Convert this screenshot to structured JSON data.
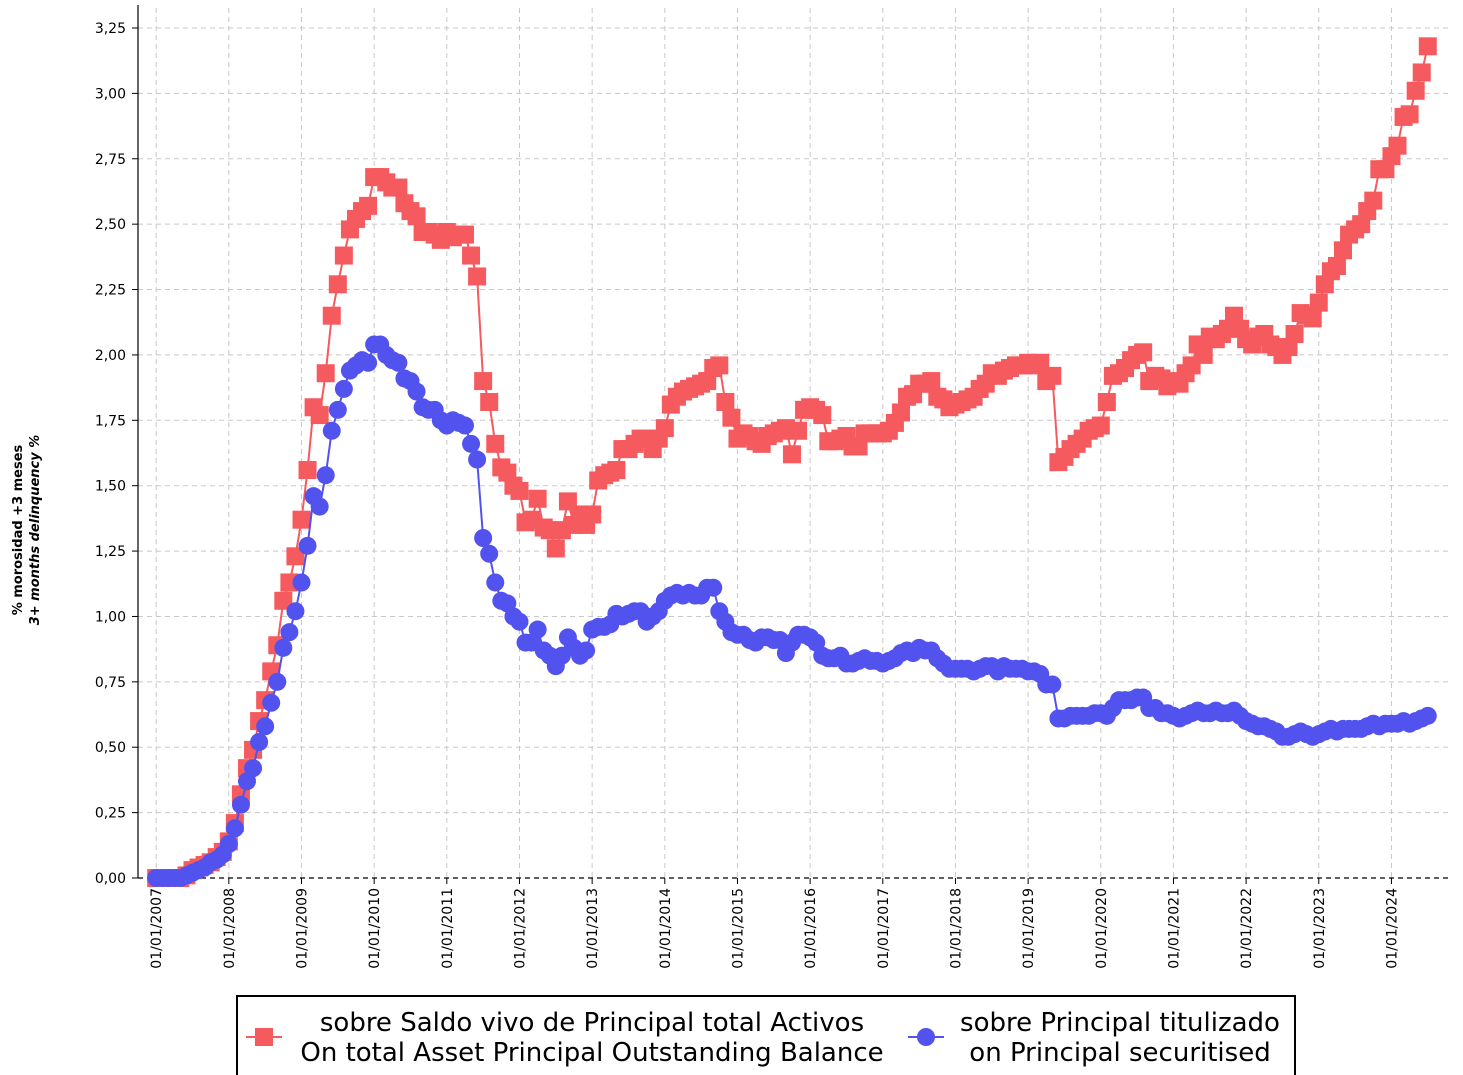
{
  "chart_data": {
    "type": "line",
    "ylabel": "% morosidad +3 meses",
    "ylabel_en": "3+ months delinquency %",
    "x": [
      "2007-01-01",
      "2007-02-01",
      "2007-03-01",
      "2007-04-01",
      "2007-05-01",
      "2007-06-01",
      "2007-07-01",
      "2007-08-01",
      "2007-09-01",
      "2007-10-01",
      "2007-11-01",
      "2007-12-01",
      "2008-01-01",
      "2008-02-01",
      "2008-03-01",
      "2008-04-01",
      "2008-05-01",
      "2008-06-01",
      "2008-07-01",
      "2008-08-01",
      "2008-09-01",
      "2008-10-01",
      "2008-11-01",
      "2008-12-01",
      "2009-01-01",
      "2009-02-01",
      "2009-03-01",
      "2009-04-01",
      "2009-05-01",
      "2009-06-01",
      "2009-07-01",
      "2009-08-01",
      "2009-09-01",
      "2009-10-01",
      "2009-11-01",
      "2009-12-01",
      "2010-01-01",
      "2010-02-01",
      "2010-03-01",
      "2010-04-01",
      "2010-05-01",
      "2010-06-01",
      "2010-07-01",
      "2010-08-01",
      "2010-09-01",
      "2010-10-01",
      "2010-11-01",
      "2010-12-01",
      "2011-01-01",
      "2011-02-01",
      "2011-03-01",
      "2011-04-01",
      "2011-05-01",
      "2011-06-01",
      "2011-07-01",
      "2011-08-01",
      "2011-09-01",
      "2011-10-01",
      "2011-11-01",
      "2011-12-01",
      "2012-01-01",
      "2012-02-01",
      "2012-03-01",
      "2012-04-01",
      "2012-05-01",
      "2012-06-01",
      "2012-07-01",
      "2012-08-01",
      "2012-09-01",
      "2012-10-01",
      "2012-11-01",
      "2012-12-01",
      "2013-01-01",
      "2013-02-01",
      "2013-03-01",
      "2013-04-01",
      "2013-05-01",
      "2013-06-01",
      "2013-07-01",
      "2013-08-01",
      "2013-09-01",
      "2013-10-01",
      "2013-11-01",
      "2013-12-01",
      "2014-01-01",
      "2014-02-01",
      "2014-03-01",
      "2014-04-01",
      "2014-05-01",
      "2014-06-01",
      "2014-07-01",
      "2014-08-01",
      "2014-09-01",
      "2014-10-01",
      "2014-11-01",
      "2014-12-01",
      "2015-01-01",
      "2015-02-01",
      "2015-03-01",
      "2015-04-01",
      "2015-05-01",
      "2015-06-01",
      "2015-07-01",
      "2015-08-01",
      "2015-09-01",
      "2015-10-01",
      "2015-11-01",
      "2015-12-01",
      "2016-01-01",
      "2016-02-01",
      "2016-03-01",
      "2016-04-01",
      "2016-05-01",
      "2016-06-01",
      "2016-07-01",
      "2016-08-01",
      "2016-09-01",
      "2016-10-01",
      "2016-11-01",
      "2016-12-01",
      "2017-01-01",
      "2017-02-01",
      "2017-03-01",
      "2017-04-01",
      "2017-05-01",
      "2017-06-01",
      "2017-07-01",
      "2017-08-01",
      "2017-09-01",
      "2017-10-01",
      "2017-11-01",
      "2017-12-01",
      "2018-01-01",
      "2018-02-01",
      "2018-03-01",
      "2018-04-01",
      "2018-05-01",
      "2018-06-01",
      "2018-07-01",
      "2018-08-01",
      "2018-09-01",
      "2018-10-01",
      "2018-11-01",
      "2018-12-01",
      "2019-01-01",
      "2019-02-01",
      "2019-03-01",
      "2019-04-01",
      "2019-05-01",
      "2019-06-01",
      "2019-07-01",
      "2019-08-01",
      "2019-09-01",
      "2019-10-01",
      "2019-11-01",
      "2019-12-01",
      "2020-01-01",
      "2020-02-01",
      "2020-03-01",
      "2020-04-01",
      "2020-05-01",
      "2020-06-01",
      "2020-07-01",
      "2020-08-01",
      "2020-09-01",
      "2020-10-01",
      "2020-11-01",
      "2020-12-01",
      "2021-01-01",
      "2021-02-01",
      "2021-03-01",
      "2021-04-01",
      "2021-05-01",
      "2021-06-01",
      "2021-07-01",
      "2021-08-01",
      "2021-09-01",
      "2021-10-01",
      "2021-11-01",
      "2021-12-01",
      "2022-01-01",
      "2022-02-01",
      "2022-03-01",
      "2022-04-01",
      "2022-05-01",
      "2022-06-01",
      "2022-07-01",
      "2022-08-01",
      "2022-09-01",
      "2022-10-01",
      "2022-11-01",
      "2022-12-01",
      "2023-01-01",
      "2023-02-01",
      "2023-03-01",
      "2023-04-01",
      "2023-05-01",
      "2023-06-01",
      "2023-07-01",
      "2023-08-01",
      "2023-09-01",
      "2023-10-01",
      "2023-11-01",
      "2023-12-01",
      "2024-01-01",
      "2024-02-01",
      "2024-03-01",
      "2024-04-01",
      "2024-05-01",
      "2024-06-01",
      "2024-07-01"
    ],
    "series": [
      {
        "name": "sobre Saldo vivo de Principal total Activos\nOn total Asset Principal Outstanding Balance",
        "color": "#f55a5f",
        "marker": "square",
        "values": [
          0,
          0,
          0,
          0,
          0,
          0.01,
          0.03,
          0.04,
          0.05,
          0.06,
          0.08,
          0.1,
          0.14,
          0.21,
          0.32,
          0.42,
          0.49,
          0.6,
          0.68,
          0.79,
          0.89,
          1.06,
          1.13,
          1.23,
          1.37,
          1.56,
          1.8,
          1.77,
          1.93,
          2.15,
          2.27,
          2.38,
          2.48,
          2.52,
          2.55,
          2.57,
          2.68,
          2.68,
          2.66,
          2.64,
          2.64,
          2.58,
          2.55,
          2.53,
          2.47,
          2.47,
          2.46,
          2.44,
          2.47,
          2.45,
          2.46,
          2.46,
          2.38,
          2.3,
          1.9,
          1.82,
          1.66,
          1.57,
          1.55,
          1.5,
          1.48,
          1.36,
          1.37,
          1.45,
          1.34,
          1.33,
          1.26,
          1.33,
          1.44,
          1.35,
          1.39,
          1.35,
          1.39,
          1.52,
          1.54,
          1.55,
          1.56,
          1.64,
          1.64,
          1.66,
          1.68,
          1.68,
          1.64,
          1.68,
          1.72,
          1.81,
          1.84,
          1.86,
          1.87,
          1.88,
          1.89,
          1.9,
          1.95,
          1.96,
          1.82,
          1.76,
          1.68,
          1.7,
          1.69,
          1.67,
          1.66,
          1.69,
          1.7,
          1.71,
          1.72,
          1.62,
          1.71,
          1.79,
          1.8,
          1.79,
          1.77,
          1.67,
          1.67,
          1.68,
          1.69,
          1.65,
          1.65,
          1.7,
          1.7,
          1.7,
          1.7,
          1.71,
          1.74,
          1.78,
          1.84,
          1.85,
          1.89,
          1.89,
          1.9,
          1.84,
          1.83,
          1.8,
          1.81,
          1.82,
          1.83,
          1.84,
          1.87,
          1.89,
          1.93,
          1.92,
          1.94,
          1.95,
          1.96,
          1.96,
          1.97,
          1.96,
          1.97,
          1.9,
          1.92,
          1.59,
          1.61,
          1.64,
          1.66,
          1.68,
          1.71,
          1.72,
          1.73,
          1.82,
          1.92,
          1.93,
          1.95,
          1.98,
          2.0,
          2.01,
          1.9,
          1.92,
          1.91,
          1.88,
          1.9,
          1.89,
          1.93,
          1.96,
          2.04,
          2.0,
          2.07,
          2.06,
          2.08,
          2.1,
          2.15,
          2.1,
          2.06,
          2.04,
          2.07,
          2.08,
          2.04,
          2.03,
          2.0,
          2.03,
          2.08,
          2.16,
          2.15,
          2.14,
          2.2,
          2.27,
          2.32,
          2.34,
          2.4,
          2.46,
          2.48,
          2.5,
          2.55,
          2.59,
          2.71,
          2.71,
          2.76,
          2.8,
          2.91,
          2.92,
          3.01,
          3.08,
          3.18
        ]
      },
      {
        "name": "sobre Principal titulizado\non Principal securitised",
        "color": "#5252ee",
        "marker": "circle",
        "values": [
          0,
          0,
          0,
          0,
          0,
          0.01,
          0.02,
          0.03,
          0.04,
          0.06,
          0.07,
          0.09,
          0.13,
          0.19,
          0.28,
          0.37,
          0.42,
          0.52,
          0.58,
          0.67,
          0.75,
          0.88,
          0.94,
          1.02,
          1.13,
          1.27,
          1.46,
          1.42,
          1.54,
          1.71,
          1.79,
          1.87,
          1.94,
          1.96,
          1.98,
          1.97,
          2.04,
          2.04,
          2.0,
          1.98,
          1.97,
          1.91,
          1.9,
          1.86,
          1.8,
          1.79,
          1.79,
          1.75,
          1.73,
          1.75,
          1.74,
          1.73,
          1.66,
          1.6,
          1.3,
          1.24,
          1.13,
          1.06,
          1.05,
          1.0,
          0.98,
          0.9,
          0.9,
          0.95,
          0.87,
          0.85,
          0.81,
          0.85,
          0.92,
          0.88,
          0.85,
          0.87,
          0.95,
          0.96,
          0.96,
          0.97,
          1.01,
          1.0,
          1.01,
          1.02,
          1.02,
          0.98,
          1.0,
          1.02,
          1.06,
          1.08,
          1.09,
          1.08,
          1.09,
          1.08,
          1.08,
          1.11,
          1.11,
          1.02,
          0.98,
          0.94,
          0.93,
          0.93,
          0.91,
          0.9,
          0.92,
          0.92,
          0.91,
          0.91,
          0.86,
          0.9,
          0.93,
          0.93,
          0.92,
          0.9,
          0.85,
          0.84,
          0.84,
          0.85,
          0.82,
          0.82,
          0.83,
          0.84,
          0.83,
          0.83,
          0.82,
          0.83,
          0.84,
          0.86,
          0.87,
          0.86,
          0.88,
          0.87,
          0.87,
          0.84,
          0.82,
          0.8,
          0.8,
          0.8,
          0.8,
          0.79,
          0.8,
          0.81,
          0.81,
          0.79,
          0.81,
          0.8,
          0.8,
          0.8,
          0.79,
          0.79,
          0.78,
          0.74,
          0.74,
          0.61,
          0.61,
          0.62,
          0.62,
          0.62,
          0.62,
          0.63,
          0.63,
          0.62,
          0.65,
          0.68,
          0.68,
          0.68,
          0.69,
          0.69,
          0.65,
          0.65,
          0.63,
          0.63,
          0.62,
          0.61,
          0.62,
          0.63,
          0.64,
          0.63,
          0.63,
          0.64,
          0.63,
          0.63,
          0.64,
          0.62,
          0.6,
          0.59,
          0.58,
          0.58,
          0.57,
          0.56,
          0.54,
          0.54,
          0.55,
          0.56,
          0.55,
          0.54,
          0.55,
          0.56,
          0.57,
          0.56,
          0.57,
          0.57,
          0.57,
          0.57,
          0.58,
          0.59,
          0.58,
          0.59,
          0.59,
          0.59,
          0.6,
          0.59,
          0.6,
          0.61,
          0.62
        ]
      }
    ],
    "xlim": [
      "2006-10-01",
      "2024-11-01"
    ],
    "xticks": [
      {
        "value": "2007-01-01",
        "label": "01/01/2007"
      },
      {
        "value": "2008-01-01",
        "label": "01/01/2008"
      },
      {
        "value": "2009-01-01",
        "label": "01/01/2009"
      },
      {
        "value": "2010-01-01",
        "label": "01/01/2010"
      },
      {
        "value": "2011-01-01",
        "label": "01/01/2011"
      },
      {
        "value": "2012-01-01",
        "label": "01/01/2012"
      },
      {
        "value": "2013-01-01",
        "label": "01/01/2013"
      },
      {
        "value": "2014-01-01",
        "label": "01/01/2014"
      },
      {
        "value": "2015-01-01",
        "label": "01/01/2015"
      },
      {
        "value": "2016-01-01",
        "label": "01/01/2016"
      },
      {
        "value": "2017-01-01",
        "label": "01/01/2017"
      },
      {
        "value": "2018-01-01",
        "label": "01/01/2018"
      },
      {
        "value": "2019-01-01",
        "label": "01/01/2019"
      },
      {
        "value": "2020-01-01",
        "label": "01/01/2020"
      },
      {
        "value": "2021-01-01",
        "label": "01/01/2021"
      },
      {
        "value": "2022-01-01",
        "label": "01/01/2022"
      },
      {
        "value": "2023-01-01",
        "label": "01/01/2023"
      },
      {
        "value": "2024-01-01",
        "label": "01/01/2024"
      }
    ],
    "ylim": [
      0,
      3.25
    ],
    "yticks": [
      {
        "value": 0,
        "label": "0,00"
      },
      {
        "value": 0.25,
        "label": "0,25"
      },
      {
        "value": 0.5,
        "label": "0,50"
      },
      {
        "value": 0.75,
        "label": "0,75"
      },
      {
        "value": 1,
        "label": "1,00"
      },
      {
        "value": 1.25,
        "label": "1,25"
      },
      {
        "value": 1.5,
        "label": "1,50"
      },
      {
        "value": 1.75,
        "label": "1,75"
      },
      {
        "value": 2,
        "label": "2,00"
      },
      {
        "value": 2.25,
        "label": "2,25"
      },
      {
        "value": 2.5,
        "label": "2,50"
      },
      {
        "value": 2.75,
        "label": "2,75"
      },
      {
        "value": 3,
        "label": "3,00"
      },
      {
        "value": 3.25,
        "label": "3,25"
      }
    ],
    "grid": true,
    "legend": "bottom"
  }
}
